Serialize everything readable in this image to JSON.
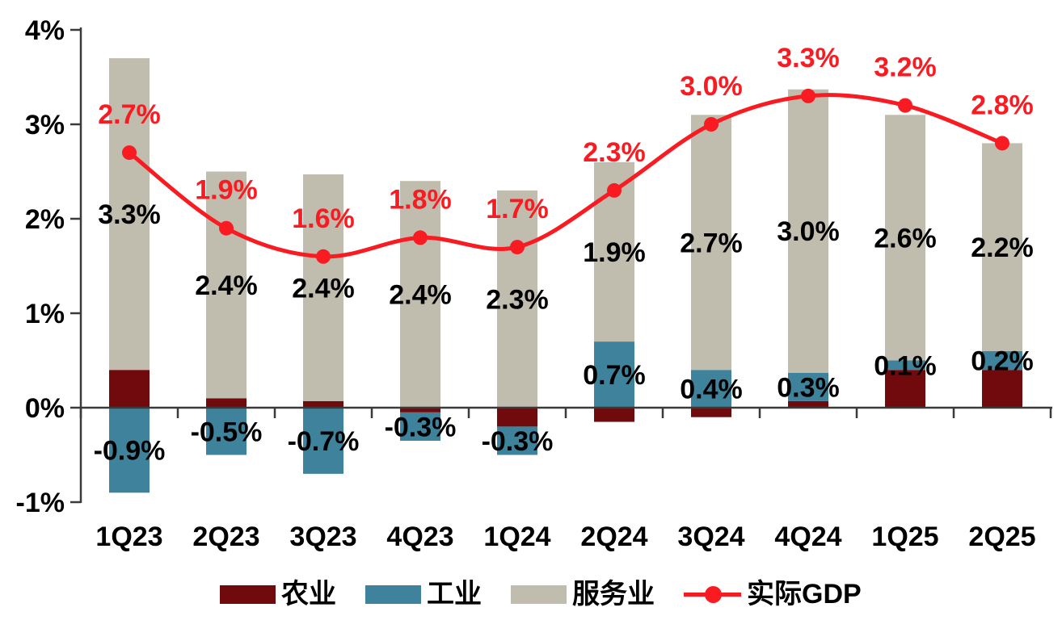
{
  "chart_data": {
    "type": "bar",
    "variant": "stacked-column-with-smoothed-line",
    "title": "",
    "xlabel": "",
    "ylabel": "",
    "grid": false,
    "legend_position": "bottom",
    "background_color": "#ffffff",
    "axis_color": "#3a3a3a",
    "data_label_color": "#000000",
    "categories": [
      "1Q23",
      "2Q23",
      "3Q23",
      "4Q23",
      "1Q24",
      "2Q24",
      "3Q24",
      "4Q24",
      "1Q25",
      "2Q25"
    ],
    "y_axis": {
      "min": -1,
      "max": 4,
      "ticks": [
        {
          "label": "4%",
          "value": 4
        },
        {
          "label": "3%",
          "value": 3
        },
        {
          "label": "2%",
          "value": 2
        },
        {
          "label": "1%",
          "value": 1
        },
        {
          "label": "0%",
          "value": 0
        },
        {
          "label": "-1%",
          "value": -1
        }
      ]
    },
    "series": [
      {
        "id": "agriculture",
        "name": "农业",
        "color": "#700a0c",
        "values": [
          0.4,
          0.1,
          0.07,
          -0.05,
          -0.2,
          -0.15,
          -0.1,
          0.07,
          0.4,
          0.4
        ],
        "labels": [
          "",
          "",
          "",
          "",
          "",
          "",
          "",
          "",
          "",
          ""
        ]
      },
      {
        "id": "industry",
        "name": "工业",
        "color": "#3e829b",
        "values": [
          -0.9,
          -0.5,
          -0.7,
          -0.3,
          -0.3,
          0.7,
          0.4,
          0.3,
          0.1,
          0.2
        ],
        "labels": [
          "-0.9%",
          "-0.5%",
          "-0.7%",
          "-0.3%",
          "-0.3%",
          "0.7%",
          "0.4%",
          "0.3%",
          "0.1%",
          "0.2%"
        ]
      },
      {
        "id": "services",
        "name": "服务业",
        "color": "#c0bdae",
        "values": [
          3.3,
          2.4,
          2.4,
          2.4,
          2.3,
          1.9,
          2.7,
          3.0,
          2.6,
          2.2
        ],
        "labels": [
          "3.3%",
          "2.4%",
          "2.4%",
          "2.4%",
          "2.3%",
          "1.9%",
          "2.7%",
          "3.0%",
          "2.6%",
          "2.2%"
        ]
      }
    ],
    "line_series": {
      "id": "real-gdp",
      "name": "实际GDP",
      "color": "#f91b22",
      "smoothed": true,
      "values": [
        2.7,
        1.9,
        1.6,
        1.8,
        1.7,
        2.3,
        3.0,
        3.3,
        3.2,
        2.8
      ],
      "labels": [
        "2.7%",
        "1.9%",
        "1.6%",
        "1.8%",
        "1.7%",
        "2.3%",
        "3.0%",
        "3.3%",
        "3.2%",
        "2.8%"
      ]
    }
  }
}
